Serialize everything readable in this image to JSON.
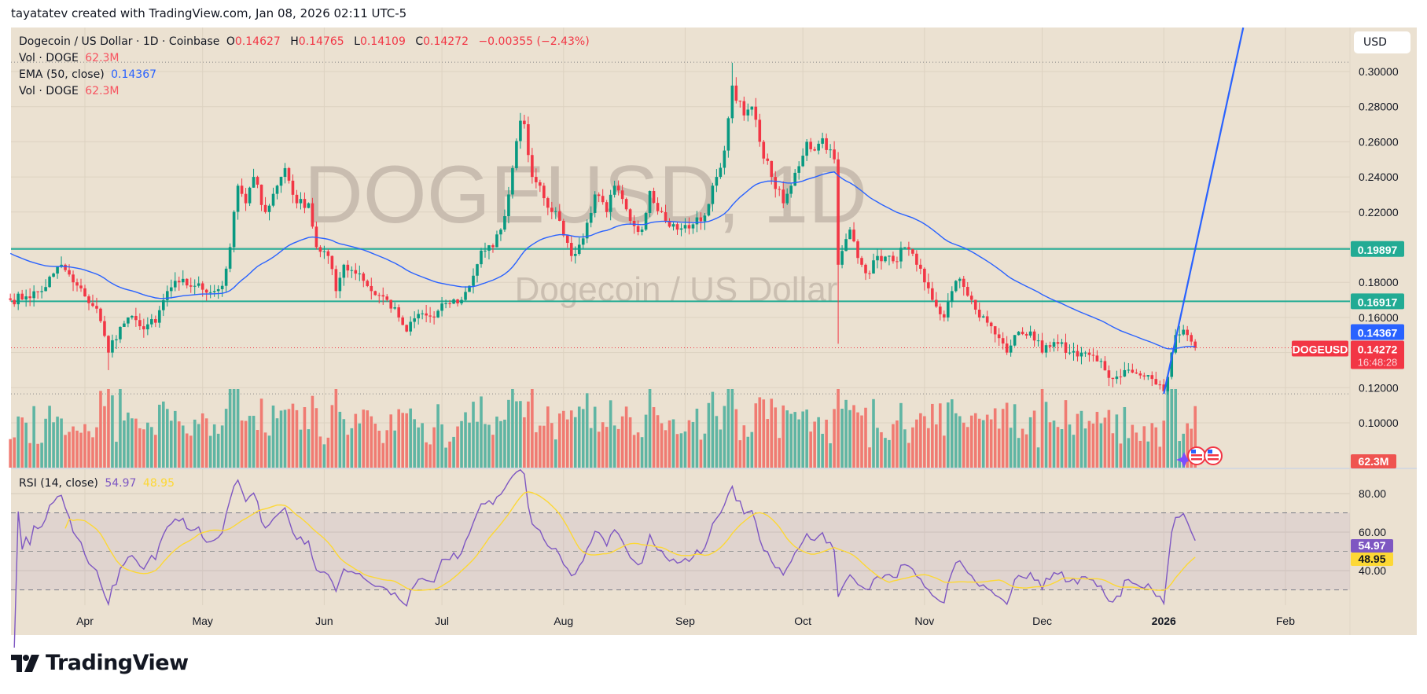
{
  "credit": "tayatatev created with TradingView.com, Jan 08, 2026 02:11 UTC-5",
  "legend": {
    "symbol": "Dogecoin / US Dollar · 1D · Coinbase",
    "o_label": "O",
    "o": "0.14627",
    "h_label": "H",
    "h": "0.14765",
    "l_label": "L",
    "l": "0.14109",
    "c_label": "C",
    "c": "0.14272",
    "change": "−0.00355 (−2.43%)",
    "vol1_label": "Vol · DOGE",
    "vol1": "62.3M",
    "ema_label": "EMA (50, close)",
    "ema": "0.14367",
    "vol2_label": "Vol · DOGE",
    "vol2": "62.3M",
    "rsi_label": "RSI (14, close)",
    "rsi": "54.97",
    "rsi_ma": "48.95"
  },
  "watermark": {
    "ticker": "DOGEUSD, 1D",
    "name": "Dogecoin / US Dollar"
  },
  "currency_button": "USD",
  "axis_labels": {
    "symbol_tag": "DOGEUSD",
    "last_price": "0.14272",
    "countdown": "16:48:28",
    "ema_price": "0.14367",
    "level_upper": "0.19897",
    "level_lower": "0.16917",
    "volume": "62.3M",
    "rsi": "54.97",
    "rsi_ma": "48.95"
  },
  "brand": "TradingView",
  "colors": {
    "up": "#089981",
    "down": "#f23645",
    "ema": "#2962ff",
    "level": "#22ab94",
    "rsi": "#7e57c2",
    "rsi_ma": "#fdd835",
    "background": "#ebe1d1"
  },
  "chart_data": {
    "type": "candlestick",
    "title": "Dogecoin / US Dollar · 1D · Coinbase",
    "start_date": "2025-03-13",
    "end_date": "2026-01-08",
    "close_anchors": [
      [
        0,
        0.17
      ],
      [
        4,
        0.172
      ],
      [
        8,
        0.175
      ],
      [
        11,
        0.185
      ],
      [
        13,
        0.19
      ],
      [
        16,
        0.18
      ],
      [
        19,
        0.172
      ],
      [
        22,
        0.165
      ],
      [
        25,
        0.14
      ],
      [
        26,
        0.147
      ],
      [
        30,
        0.16
      ],
      [
        33,
        0.155
      ],
      [
        37,
        0.157
      ],
      [
        40,
        0.175
      ],
      [
        43,
        0.18
      ],
      [
        47,
        0.178
      ],
      [
        52,
        0.175
      ],
      [
        54,
        0.178
      ],
      [
        56,
        0.2
      ],
      [
        58,
        0.235
      ],
      [
        60,
        0.225
      ],
      [
        62,
        0.24
      ],
      [
        65,
        0.22
      ],
      [
        68,
        0.235
      ],
      [
        70,
        0.245
      ],
      [
        73,
        0.225
      ],
      [
        76,
        0.225
      ],
      [
        78,
        0.2
      ],
      [
        81,
        0.195
      ],
      [
        83,
        0.175
      ],
      [
        85,
        0.19
      ],
      [
        89,
        0.185
      ],
      [
        92,
        0.175
      ],
      [
        96,
        0.17
      ],
      [
        99,
        0.16
      ],
      [
        101,
        0.152
      ],
      [
        104,
        0.162
      ],
      [
        108,
        0.16
      ],
      [
        111,
        0.168
      ],
      [
        115,
        0.17
      ],
      [
        117,
        0.178
      ],
      [
        120,
        0.198
      ],
      [
        123,
        0.2
      ],
      [
        125,
        0.21
      ],
      [
        127,
        0.23
      ],
      [
        128,
        0.245
      ],
      [
        130,
        0.272
      ],
      [
        131,
        0.27
      ],
      [
        133,
        0.24
      ],
      [
        135,
        0.235
      ],
      [
        138,
        0.22
      ],
      [
        140,
        0.215
      ],
      [
        143,
        0.195
      ],
      [
        146,
        0.205
      ],
      [
        149,
        0.23
      ],
      [
        152,
        0.22
      ],
      [
        154,
        0.235
      ],
      [
        158,
        0.215
      ],
      [
        161,
        0.21
      ],
      [
        163,
        0.232
      ],
      [
        167,
        0.215
      ],
      [
        170,
        0.21
      ],
      [
        174,
        0.213
      ],
      [
        177,
        0.218
      ],
      [
        180,
        0.24
      ],
      [
        182,
        0.255
      ],
      [
        184,
        0.292
      ],
      [
        187,
        0.275
      ],
      [
        189,
        0.28
      ],
      [
        191,
        0.26
      ],
      [
        194,
        0.24
      ],
      [
        197,
        0.225
      ],
      [
        199,
        0.235
      ],
      [
        203,
        0.26
      ],
      [
        205,
        0.255
      ],
      [
        207,
        0.262
      ],
      [
        210,
        0.25
      ],
      [
        211,
        0.19
      ],
      [
        214,
        0.21
      ],
      [
        217,
        0.19
      ],
      [
        219,
        0.185
      ],
      [
        221,
        0.195
      ],
      [
        225,
        0.192
      ],
      [
        228,
        0.2
      ],
      [
        231,
        0.19
      ],
      [
        233,
        0.18
      ],
      [
        235,
        0.17
      ],
      [
        238,
        0.16
      ],
      [
        240,
        0.175
      ],
      [
        242,
        0.182
      ],
      [
        245,
        0.17
      ],
      [
        247,
        0.16
      ],
      [
        250,
        0.155
      ],
      [
        254,
        0.14
      ],
      [
        256,
        0.15
      ],
      [
        260,
        0.152
      ],
      [
        263,
        0.14
      ],
      [
        267,
        0.145
      ],
      [
        270,
        0.14
      ],
      [
        274,
        0.14
      ],
      [
        277,
        0.135
      ],
      [
        281,
        0.125
      ],
      [
        284,
        0.13
      ],
      [
        288,
        0.127
      ],
      [
        291,
        0.125
      ],
      [
        294,
        0.118
      ],
      [
        296,
        0.14
      ],
      [
        297,
        0.15
      ],
      [
        299,
        0.153
      ],
      [
        300,
        0.15
      ],
      [
        301,
        0.14627
      ],
      [
        302,
        0.14272
      ]
    ],
    "last_candle": {
      "open": 0.14627,
      "high": 0.14765,
      "low": 0.14109,
      "close": 0.14272
    },
    "notable_wicks": [
      {
        "day": 25,
        "low": 0.13
      },
      {
        "day": 211,
        "low": 0.145
      },
      {
        "day": 184,
        "high": 0.305
      },
      {
        "day": 294,
        "low": 0.1165
      }
    ],
    "horizontal_levels": [
      0.19897,
      0.16917
    ],
    "trendline": {
      "from": {
        "day": 294,
        "price": 0.1165
      },
      "slope_per_day": 0.0103
    },
    "indicators": [
      "Volume",
      "EMA 50",
      "RSI 14 with SMA 14"
    ],
    "price_axis": {
      "ticks": [
        "0.30000",
        "0.28000",
        "0.26000",
        "0.24000",
        "0.22000",
        "0.18000",
        "0.16000",
        "0.12000",
        "0.10000"
      ],
      "range": [
        0.095,
        0.325
      ]
    },
    "rsi_axis": {
      "ticks": [
        "80.00",
        "60.00",
        "40.00"
      ],
      "band": [
        30,
        70
      ]
    },
    "time_axis": {
      "ticks": [
        "Apr",
        "May",
        "Jun",
        "Jul",
        "Aug",
        "Sep",
        "Oct",
        "Nov",
        "Dec",
        "2026",
        "Feb"
      ]
    }
  }
}
